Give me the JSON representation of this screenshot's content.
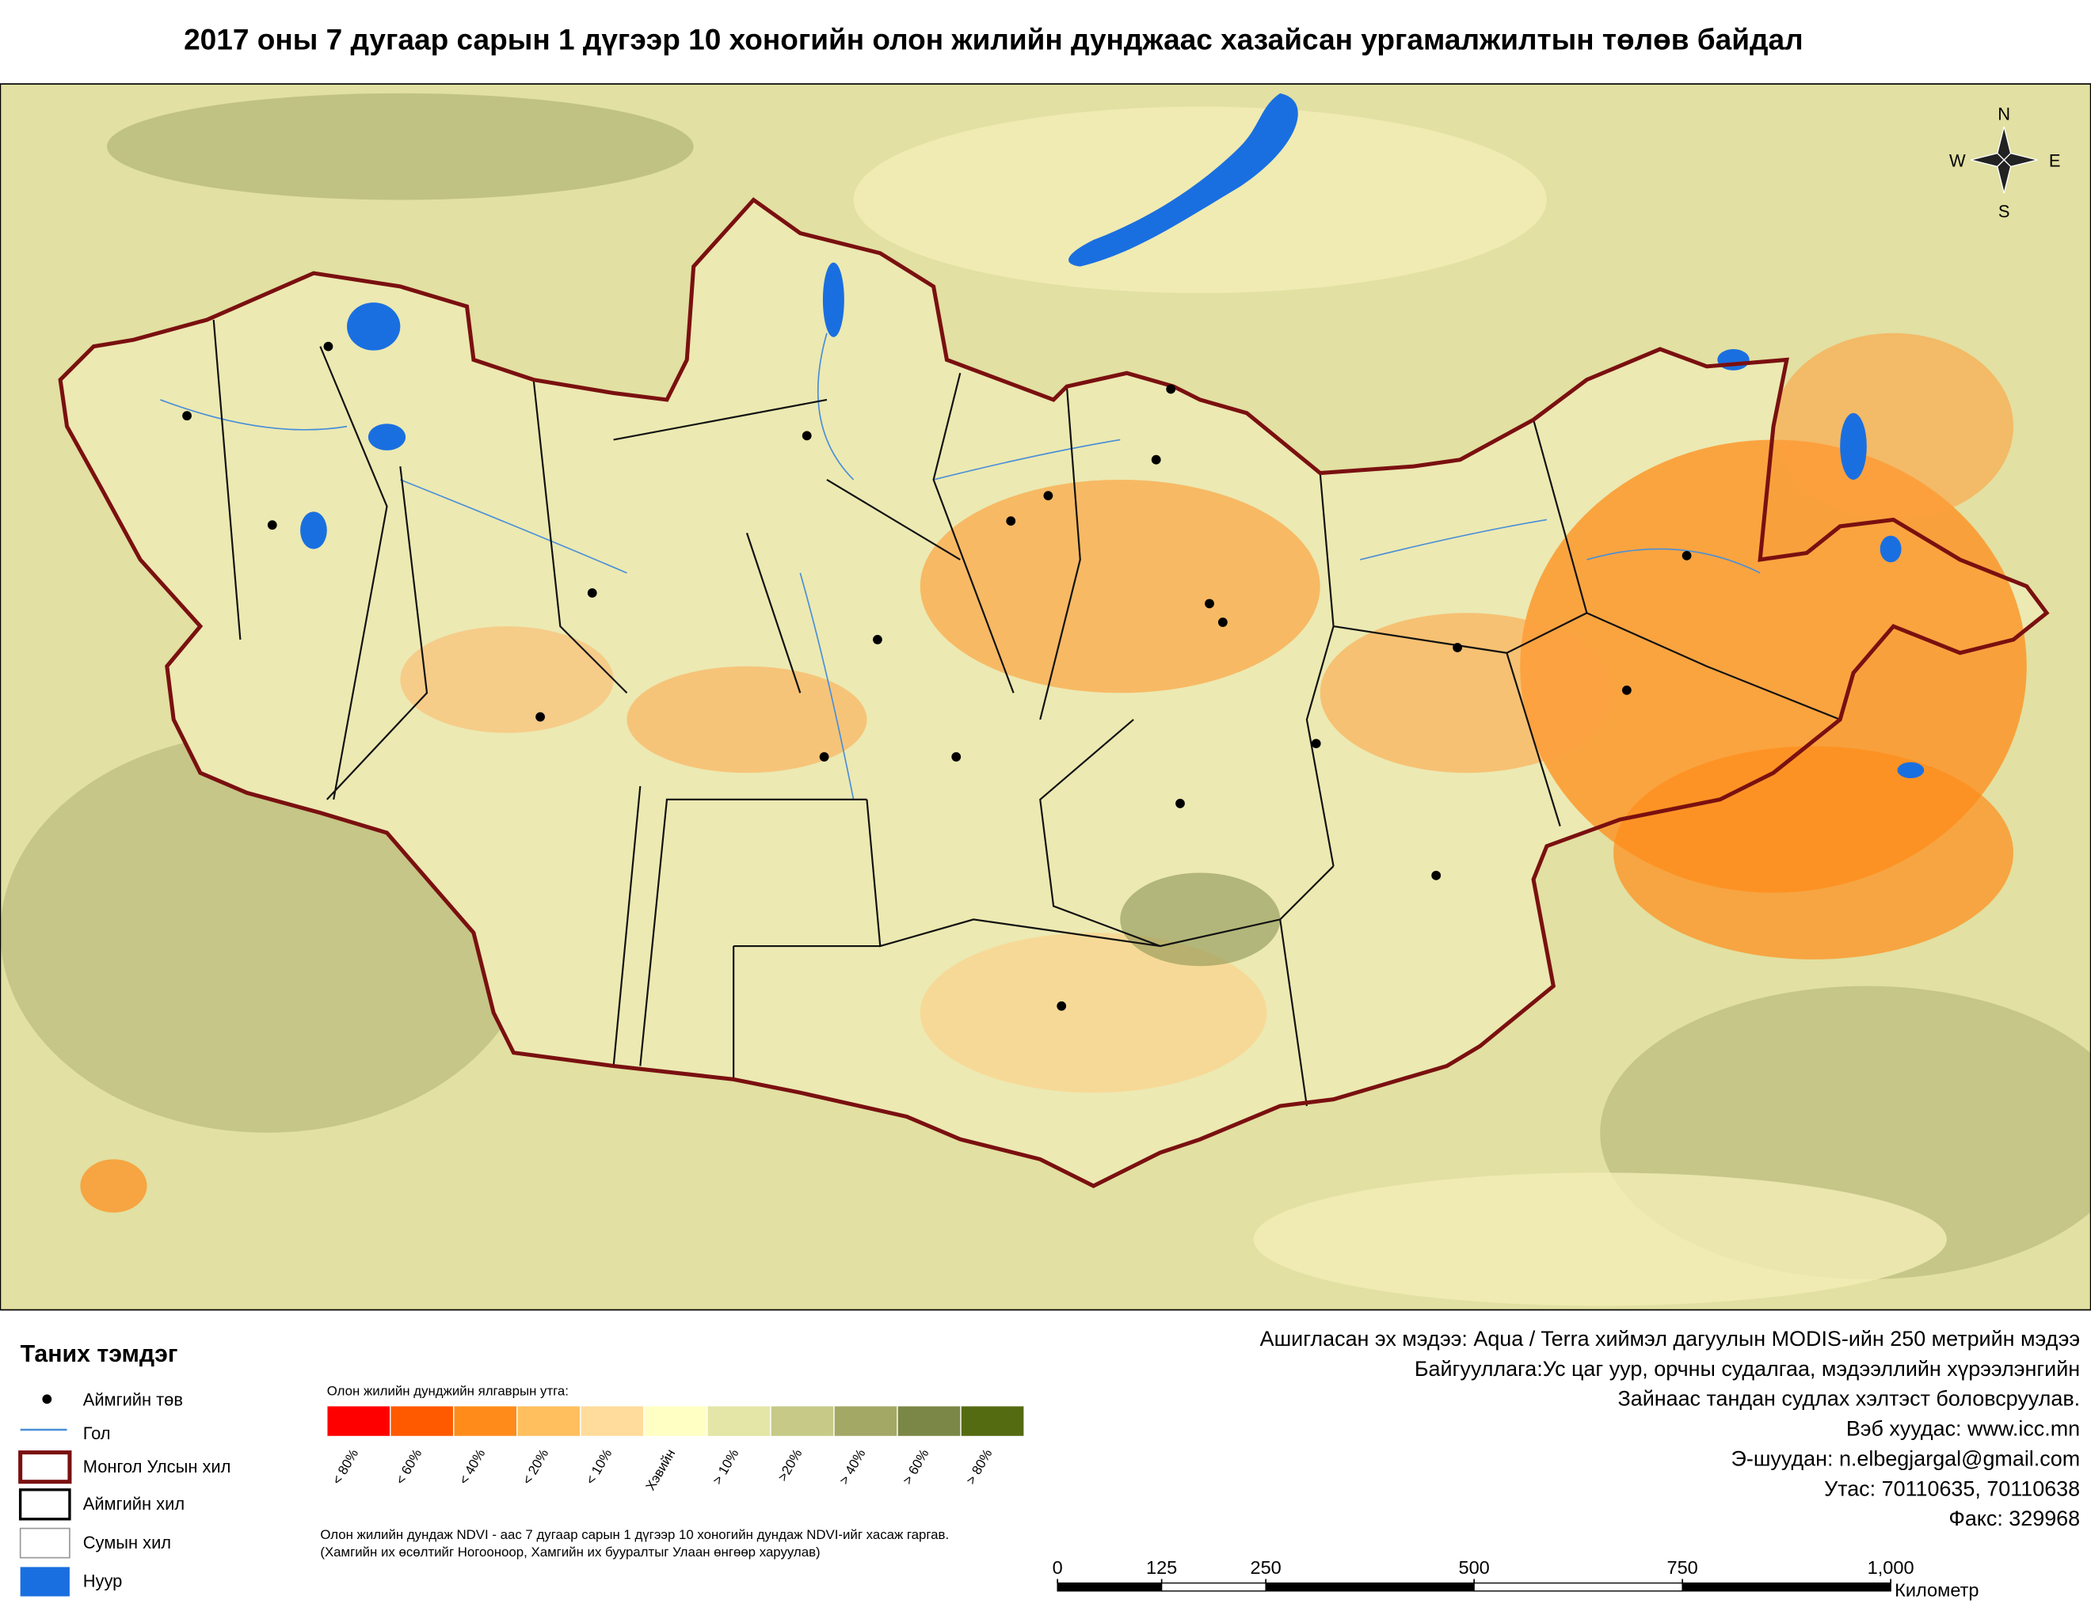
{
  "title": "2017 оны 7 дугаар сарын 1 дүгээр 10 хоногийн олон жилийн дунджаас хазайсан ургамалжилтын төлөв байдал",
  "compass": {
    "n": "N",
    "w": "W",
    "e": "E",
    "s": "S"
  },
  "legend": {
    "title": "Таних тэмдэг",
    "items": [
      "Аймгийн төв",
      "Гол",
      "Монгол Улсын хил",
      "Аймгийн хил",
      "Сумын хил",
      "Нуур"
    ]
  },
  "color_scale": {
    "caption": "Олон жилийн дунджийн ялгаврын утга:",
    "classes": [
      {
        "label": "< 80%",
        "color": "#ff0000"
      },
      {
        "label": "< 60%",
        "color": "#ff5a00"
      },
      {
        "label": "< 40%",
        "color": "#ff8c1a"
      },
      {
        "label": "< 20%",
        "color": "#ffbf5e"
      },
      {
        "label": "< 10%",
        "color": "#ffdc9c"
      },
      {
        "label": "Хэвийн",
        "color": "#ffffc4"
      },
      {
        "label": "> 10%",
        "color": "#e3e6a6"
      },
      {
        "label": ">20%",
        "color": "#c6ca86"
      },
      {
        "label": "> 40%",
        "color": "#a3a865"
      },
      {
        "label": "> 60%",
        "color": "#7b8746"
      },
      {
        "label": "> 80%",
        "color": "#556b12"
      }
    ]
  },
  "notes": [
    "Олон жилийн дундаж NDVI - аас 7 дугаар сарын 1 дүгээр 10 хоногийн дундаж NDVI-ийг хасаж гаргав.",
    "(Хамгийн их өсөлтийг Ногооноор,  Хамгийн их бууралтыг Улаан өнгөөр харуулав)"
  ],
  "info": [
    "Ашигласан эх мэдээ: Aqua / Terra хиймэл дагуулын MODIS-ийн 250 метрийн мэдээ",
    "Байгууллага:Ус цаг уур, орчны судалгаа, мэдээллийн хүрээлэнгийн",
    "Зайнаас тандан судлах хэлтэст боловсруулав.",
    "Вэб хуудас: www.icc.mn",
    "Э-шуудан: n.elbegjargal@gmail.com",
    "Утас: 70110635, 70110638",
    "Факс: 329968"
  ],
  "scale_bar": {
    "ticks": [
      0,
      125,
      250,
      500,
      750,
      {
        "value": 1000,
        "label": "1,000"
      }
    ],
    "unit": "Километр"
  }
}
